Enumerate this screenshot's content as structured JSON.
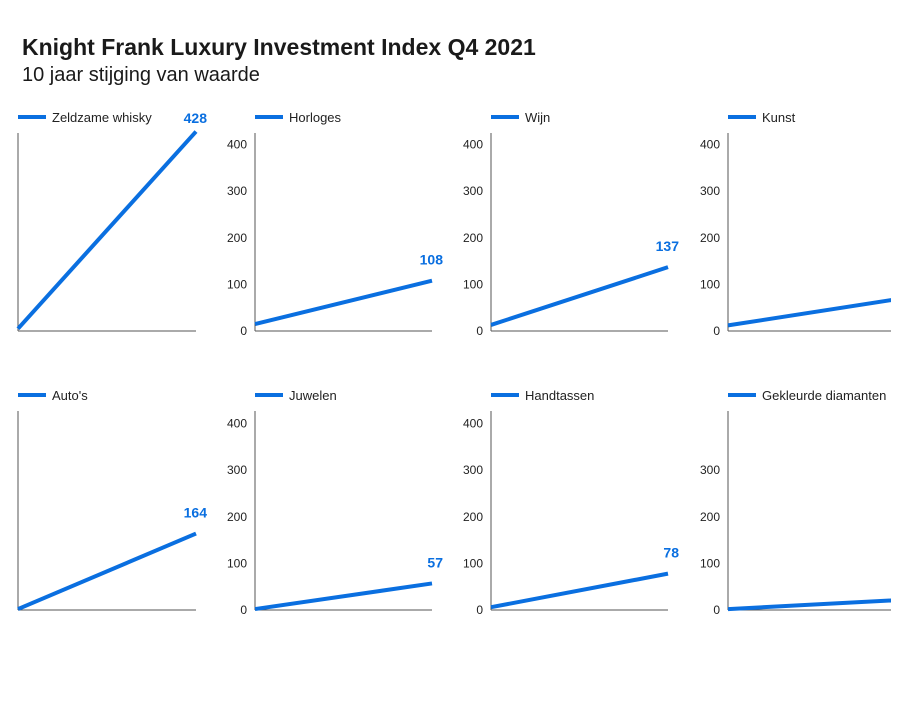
{
  "title": "Knight Frank Luxury Investment Index Q4 2021",
  "subtitle": "10 jaar stijging van waarde",
  "colors": {
    "line": "#0a6fe0",
    "axis": "#555555",
    "label": "#0a6fe0",
    "tick": "#222222"
  },
  "chart_data": [
    {
      "type": "line",
      "series": [
        {
          "name": "Zeldzame whisky",
          "values": [
            5,
            428
          ]
        }
      ],
      "end_label": "428",
      "ylim": [
        0,
        428
      ],
      "yticks": []
    },
    {
      "type": "line",
      "series": [
        {
          "name": "Horloges",
          "values": [
            15,
            108
          ]
        }
      ],
      "end_label": "108",
      "ylim": [
        0,
        428
      ],
      "yticks": [
        "0",
        "100",
        "200",
        "300",
        "400"
      ]
    },
    {
      "type": "line",
      "series": [
        {
          "name": "Wijn",
          "values": [
            13,
            137
          ]
        }
      ],
      "end_label": "137",
      "ylim": [
        0,
        428
      ],
      "yticks": [
        "0",
        "100",
        "200",
        "300",
        "400"
      ]
    },
    {
      "type": "line",
      "series": [
        {
          "name": "Kunst",
          "values": [
            12,
            71
          ]
        }
      ],
      "end_label": "",
      "ylim": [
        0,
        428
      ],
      "yticks": [
        "0",
        "100",
        "200",
        "300",
        "400"
      ]
    },
    {
      "type": "line",
      "series": [
        {
          "name": "Auto's",
          "values": [
            2,
            164
          ]
        }
      ],
      "end_label": "164",
      "ylim": [
        0,
        428
      ],
      "yticks": []
    },
    {
      "type": "line",
      "series": [
        {
          "name": "Juwelen",
          "values": [
            2,
            57
          ]
        }
      ],
      "end_label": "57",
      "ylim": [
        0,
        428
      ],
      "yticks": [
        "0",
        "100",
        "200",
        "300",
        "400"
      ]
    },
    {
      "type": "line",
      "series": [
        {
          "name": "Handtassen",
          "values": [
            6,
            78
          ]
        }
      ],
      "end_label": "78",
      "ylim": [
        0,
        428
      ],
      "yticks": [
        "0",
        "100",
        "200",
        "300",
        "400"
      ]
    },
    {
      "type": "line",
      "series": [
        {
          "name": "Gekleurde diamanten",
          "values": [
            2,
            22
          ]
        }
      ],
      "end_label": "",
      "ylim": [
        0,
        428
      ],
      "yticks": [
        "0",
        "100",
        "200",
        "300"
      ]
    }
  ]
}
